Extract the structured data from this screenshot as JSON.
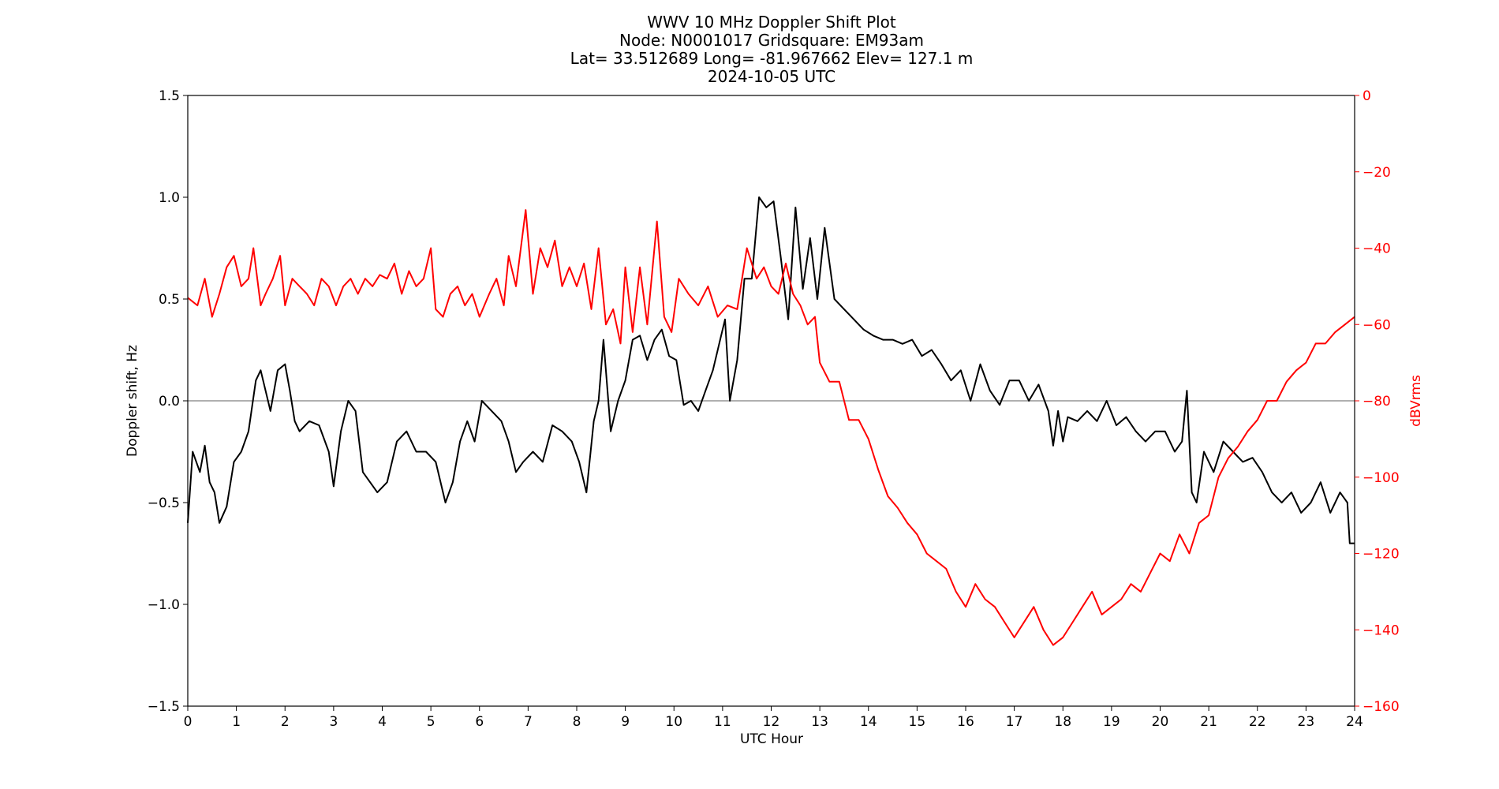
{
  "chart_data": {
    "type": "line",
    "title_lines": [
      "WWV 10 MHz Doppler Shift Plot",
      "Node:  N0001017     Gridsquare:  EM93am",
      "Lat= 33.512689    Long= -81.967662    Elev= 127.1 m",
      "2024-10-05  UTC"
    ],
    "xlabel": "UTC Hour",
    "ylabel_left": "Doppler shift, Hz",
    "ylabel_right": "dBVrms",
    "xlim": [
      0,
      24
    ],
    "ylim_left": [
      -1.5,
      1.5
    ],
    "ylim_right": [
      -160,
      0
    ],
    "x_ticks": [
      0,
      1,
      2,
      3,
      4,
      5,
      6,
      7,
      8,
      9,
      10,
      11,
      12,
      13,
      14,
      15,
      16,
      17,
      18,
      19,
      20,
      21,
      22,
      23,
      24
    ],
    "y_ticks_left": [
      "1.5",
      "1.0",
      "0.5",
      "0.0",
      "−0.5",
      "−1.0",
      "−1.5"
    ],
    "y_ticks_left_values": [
      1.5,
      1.0,
      0.5,
      0.0,
      -0.5,
      -1.0,
      -1.5
    ],
    "y_ticks_right": [
      "0",
      "−20",
      "−40",
      "−60",
      "−80",
      "−100",
      "−120",
      "−140",
      "−160"
    ],
    "y_ticks_right_values": [
      0,
      -20,
      -40,
      -60,
      -80,
      -100,
      -120,
      -140,
      -160
    ],
    "zero_line": 0.0,
    "series": [
      {
        "axis": "left",
        "color": "#000000",
        "x": [
          0,
          0.1,
          0.25,
          0.35,
          0.45,
          0.55,
          0.65,
          0.8,
          0.95,
          1.1,
          1.25,
          1.4,
          1.5,
          1.6,
          1.7,
          1.85,
          2.0,
          2.1,
          2.2,
          2.3,
          2.5,
          2.7,
          2.9,
          3.0,
          3.15,
          3.3,
          3.45,
          3.6,
          3.75,
          3.9,
          4.1,
          4.3,
          4.5,
          4.7,
          4.9,
          5.1,
          5.3,
          5.45,
          5.6,
          5.75,
          5.9,
          6.05,
          6.25,
          6.45,
          6.6,
          6.75,
          6.9,
          7.1,
          7.3,
          7.5,
          7.7,
          7.9,
          8.05,
          8.2,
          8.35,
          8.45,
          8.55,
          8.7,
          8.85,
          9.0,
          9.15,
          9.3,
          9.45,
          9.6,
          9.75,
          9.9,
          10.05,
          10.2,
          10.35,
          10.5,
          10.65,
          10.8,
          10.95,
          11.05,
          11.15,
          11.3,
          11.45,
          11.6,
          11.75,
          11.9,
          12.05,
          12.2,
          12.35,
          12.5,
          12.65,
          12.8,
          12.95,
          13.1,
          13.3,
          13.5,
          13.7,
          13.9,
          14.1,
          14.3,
          14.5,
          14.7,
          14.9,
          15.1,
          15.3,
          15.5,
          15.7,
          15.9,
          16.1,
          16.3,
          16.5,
          16.7,
          16.9,
          17.1,
          17.3,
          17.5,
          17.7,
          17.8,
          17.9,
          18.0,
          18.1,
          18.3,
          18.5,
          18.7,
          18.9,
          19.1,
          19.3,
          19.5,
          19.7,
          19.9,
          20.1,
          20.3,
          20.45,
          20.55,
          20.65,
          20.75,
          20.9,
          21.1,
          21.3,
          21.5,
          21.7,
          21.9,
          22.1,
          22.3,
          22.5,
          22.7,
          22.9,
          23.1,
          23.3,
          23.5,
          23.7,
          23.85,
          23.9,
          24.0
        ],
        "y": [
          -0.6,
          -0.25,
          -0.35,
          -0.22,
          -0.4,
          -0.45,
          -0.6,
          -0.52,
          -0.3,
          -0.25,
          -0.15,
          0.1,
          0.15,
          0.05,
          -0.05,
          0.15,
          0.18,
          0.05,
          -0.1,
          -0.15,
          -0.1,
          -0.12,
          -0.25,
          -0.42,
          -0.15,
          0.0,
          -0.05,
          -0.35,
          -0.4,
          -0.45,
          -0.4,
          -0.2,
          -0.15,
          -0.25,
          -0.25,
          -0.3,
          -0.5,
          -0.4,
          -0.2,
          -0.1,
          -0.2,
          0.0,
          -0.05,
          -0.1,
          -0.2,
          -0.35,
          -0.3,
          -0.25,
          -0.3,
          -0.12,
          -0.15,
          -0.2,
          -0.3,
          -0.45,
          -0.1,
          0.0,
          0.3,
          -0.15,
          0.0,
          0.1,
          0.3,
          0.32,
          0.2,
          0.3,
          0.35,
          0.22,
          0.2,
          -0.02,
          0.0,
          -0.05,
          0.05,
          0.15,
          0.3,
          0.4,
          0.0,
          0.2,
          0.6,
          0.6,
          1.0,
          0.95,
          0.98,
          0.7,
          0.4,
          0.95,
          0.55,
          0.8,
          0.5,
          0.85,
          0.5,
          0.45,
          0.4,
          0.35,
          0.32,
          0.3,
          0.3,
          0.28,
          0.3,
          0.22,
          0.25,
          0.18,
          0.1,
          0.15,
          0.0,
          0.18,
          0.05,
          -0.02,
          0.1,
          0.1,
          0.0,
          0.08,
          -0.05,
          -0.22,
          -0.05,
          -0.2,
          -0.08,
          -0.1,
          -0.05,
          -0.1,
          0.0,
          -0.12,
          -0.08,
          -0.15,
          -0.2,
          -0.15,
          -0.15,
          -0.25,
          -0.2,
          0.05,
          -0.45,
          -0.5,
          -0.25,
          -0.35,
          -0.2,
          -0.25,
          -0.3,
          -0.28,
          -0.35,
          -0.45,
          -0.5,
          -0.45,
          -0.55,
          -0.5,
          -0.4,
          -0.55,
          -0.45,
          -0.5,
          -0.7,
          -0.7
        ]
      },
      {
        "axis": "right",
        "color": "#ff0000",
        "x": [
          0,
          0.2,
          0.35,
          0.5,
          0.65,
          0.8,
          0.95,
          1.1,
          1.25,
          1.35,
          1.5,
          1.6,
          1.75,
          1.9,
          2.0,
          2.15,
          2.3,
          2.45,
          2.6,
          2.75,
          2.9,
          3.05,
          3.2,
          3.35,
          3.5,
          3.65,
          3.8,
          3.95,
          4.1,
          4.25,
          4.4,
          4.55,
          4.7,
          4.85,
          5.0,
          5.1,
          5.25,
          5.4,
          5.55,
          5.7,
          5.85,
          6.0,
          6.2,
          6.35,
          6.5,
          6.6,
          6.75,
          6.95,
          7.1,
          7.25,
          7.4,
          7.55,
          7.7,
          7.85,
          8.0,
          8.15,
          8.3,
          8.45,
          8.6,
          8.75,
          8.9,
          9.0,
          9.15,
          9.3,
          9.45,
          9.65,
          9.8,
          9.95,
          10.1,
          10.3,
          10.5,
          10.7,
          10.9,
          11.1,
          11.3,
          11.5,
          11.7,
          11.85,
          12.0,
          12.15,
          12.3,
          12.45,
          12.6,
          12.75,
          12.9,
          13.0,
          13.2,
          13.4,
          13.6,
          13.8,
          14.0,
          14.2,
          14.4,
          14.6,
          14.8,
          15.0,
          15.2,
          15.4,
          15.6,
          15.8,
          16.0,
          16.2,
          16.4,
          16.6,
          16.8,
          17.0,
          17.2,
          17.4,
          17.6,
          17.8,
          18.0,
          18.2,
          18.4,
          18.6,
          18.8,
          19.0,
          19.2,
          19.4,
          19.6,
          19.8,
          20.0,
          20.2,
          20.4,
          20.6,
          20.8,
          21.0,
          21.2,
          21.4,
          21.6,
          21.8,
          22.0,
          22.2,
          22.4,
          22.6,
          22.8,
          23.0,
          23.2,
          23.4,
          23.6,
          23.8,
          24.0
        ],
        "y": [
          -53,
          -55,
          -48,
          -58,
          -52,
          -45,
          -42,
          -50,
          -48,
          -40,
          -55,
          -52,
          -48,
          -42,
          -55,
          -48,
          -50,
          -52,
          -55,
          -48,
          -50,
          -55,
          -50,
          -48,
          -52,
          -48,
          -50,
          -47,
          -48,
          -44,
          -52,
          -46,
          -50,
          -48,
          -40,
          -56,
          -58,
          -52,
          -50,
          -55,
          -52,
          -58,
          -52,
          -48,
          -55,
          -42,
          -50,
          -30,
          -52,
          -40,
          -45,
          -38,
          -50,
          -45,
          -50,
          -44,
          -56,
          -40,
          -60,
          -56,
          -65,
          -45,
          -62,
          -45,
          -60,
          -33,
          -58,
          -62,
          -48,
          -52,
          -55,
          -50,
          -58,
          -55,
          -56,
          -40,
          -48,
          -45,
          -50,
          -52,
          -44,
          -52,
          -55,
          -60,
          -58,
          -70,
          -75,
          -75,
          -85,
          -85,
          -90,
          -98,
          -105,
          -108,
          -112,
          -115,
          -120,
          -122,
          -124,
          -130,
          -134,
          -128,
          -132,
          -134,
          -138,
          -142,
          -138,
          -134,
          -140,
          -144,
          -142,
          -138,
          -134,
          -130,
          -136,
          -134,
          -132,
          -128,
          -130,
          -125,
          -120,
          -122,
          -115,
          -120,
          -112,
          -110,
          -100,
          -95,
          -92,
          -88,
          -85,
          -80,
          -80,
          -75,
          -72,
          -70,
          -65,
          -65,
          -62,
          -60,
          -58
        ]
      }
    ]
  }
}
